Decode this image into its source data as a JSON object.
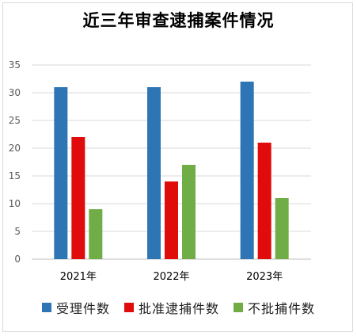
{
  "chart_data": {
    "type": "bar",
    "title": "近三年审查逮捕案件情况",
    "categories": [
      "2021年",
      "2022年",
      "2023年"
    ],
    "series": [
      {
        "name": "受理件数",
        "values": [
          31,
          31,
          32
        ],
        "color": "#2e75b6"
      },
      {
        "name": "批准逮捕件数",
        "values": [
          22,
          14,
          21
        ],
        "color": "#e00b0b"
      },
      {
        "name": "不批捕件数",
        "values": [
          9,
          17,
          11
        ],
        "color": "#70ad47"
      }
    ],
    "ylim": [
      0,
      35
    ],
    "yticks": [
      0,
      5,
      10,
      15,
      20,
      25,
      30,
      35
    ],
    "grid": true,
    "legend": "bottom"
  }
}
